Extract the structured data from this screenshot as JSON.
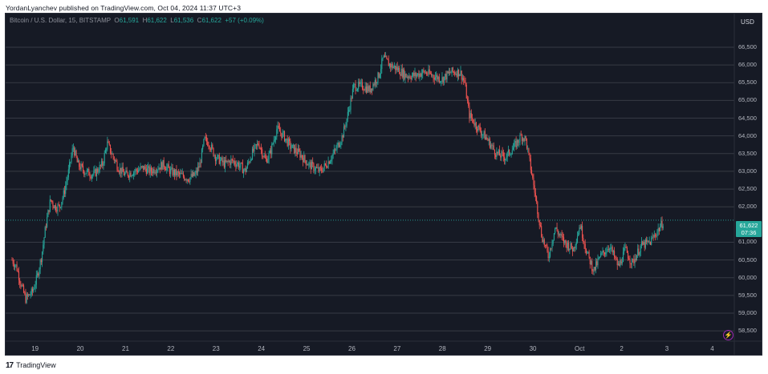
{
  "header": {
    "published_text": "YordanLyanchev published on TradingView.com, Oct 04, 2024 11:37 UTC+3"
  },
  "legend": {
    "symbol": "Bitcoin / U.S. Dollar, 15, BITSTAMP",
    "o_label": "O",
    "o_value": "61,591",
    "h_label": "H",
    "h_value": "61,622",
    "l_label": "L",
    "l_value": "61,536",
    "c_label": "C",
    "c_value": "61,622",
    "change": "+57 (+0.09%)"
  },
  "axis": {
    "currency": "USD",
    "price_labels": [
      "66,500",
      "66,000",
      "65,500",
      "65,000",
      "64,500",
      "64,000",
      "63,500",
      "63,000",
      "62,500",
      "62,000",
      "61,000",
      "60,500",
      "60,000",
      "59,500",
      "59,000",
      "58,500"
    ],
    "time_labels": [
      "19",
      "20",
      "21",
      "22",
      "23",
      "24",
      "25",
      "26",
      "27",
      "28",
      "29",
      "30",
      "Oct",
      "2",
      "3",
      "4"
    ]
  },
  "last_price": {
    "price": "61,622",
    "countdown": "07:36"
  },
  "footer": {
    "brand": "TradingView",
    "logo_text": "17"
  },
  "colors": {
    "up": "#26a69a",
    "down": "#ef5350",
    "background": "#161a25",
    "grid": "#363a45"
  },
  "icons": {
    "bolt": "lightning-icon"
  },
  "chart_data": {
    "type": "candlestick",
    "title": "Bitcoin / U.S. Dollar, 15, BITSTAMP",
    "xlabel": "",
    "ylabel": "USD",
    "ylim": [
      58500,
      66900
    ],
    "grid": true,
    "x": [
      "19",
      "20",
      "21",
      "22",
      "23",
      "24",
      "25",
      "26",
      "27",
      "28",
      "29",
      "30",
      "Oct",
      "2",
      "3",
      "4"
    ],
    "path": [
      [
        0,
        60500
      ],
      [
        0.1,
        60300
      ],
      [
        0.2,
        59800
      ],
      [
        0.3,
        59400
      ],
      [
        0.45,
        59600
      ],
      [
        0.55,
        60000
      ],
      [
        0.65,
        60600
      ],
      [
        0.75,
        61500
      ],
      [
        0.85,
        62200
      ],
      [
        0.95,
        62000
      ],
      [
        1.05,
        62000
      ],
      [
        1.15,
        62400
      ],
      [
        1.25,
        63000
      ],
      [
        1.35,
        63700
      ],
      [
        1.45,
        63200
      ],
      [
        1.6,
        63000
      ],
      [
        1.8,
        62900
      ],
      [
        2.0,
        63200
      ],
      [
        2.1,
        63800
      ],
      [
        2.2,
        63500
      ],
      [
        2.35,
        63100
      ],
      [
        2.5,
        62900
      ],
      [
        2.7,
        63000
      ],
      [
        2.9,
        63100
      ],
      [
        3.05,
        63000
      ],
      [
        3.2,
        63100
      ],
      [
        3.35,
        63200
      ],
      [
        3.5,
        63000
      ],
      [
        3.7,
        62900
      ],
      [
        3.9,
        62800
      ],
      [
        4.05,
        62900
      ],
      [
        4.15,
        63200
      ],
      [
        4.25,
        63900
      ],
      [
        4.35,
        63800
      ],
      [
        4.5,
        63400
      ],
      [
        4.7,
        63200
      ],
      [
        4.85,
        63300
      ],
      [
        5.0,
        63200
      ],
      [
        5.15,
        63000
      ],
      [
        5.3,
        63500
      ],
      [
        5.45,
        63800
      ],
      [
        5.6,
        63300
      ],
      [
        5.7,
        63500
      ],
      [
        5.85,
        64200
      ],
      [
        6.0,
        64000
      ],
      [
        6.15,
        63700
      ],
      [
        6.35,
        63500
      ],
      [
        6.55,
        63200
      ],
      [
        6.8,
        63000
      ],
      [
        6.95,
        63200
      ],
      [
        7.15,
        63600
      ],
      [
        7.3,
        64000
      ],
      [
        7.4,
        64500
      ],
      [
        7.55,
        65400
      ],
      [
        7.75,
        65400
      ],
      [
        7.9,
        65300
      ],
      [
        8.1,
        65700
      ],
      [
        8.2,
        66200
      ],
      [
        8.35,
        66000
      ],
      [
        8.5,
        65900
      ],
      [
        8.7,
        65700
      ],
      [
        8.9,
        65700
      ],
      [
        9.1,
        65800
      ],
      [
        9.3,
        65700
      ],
      [
        9.5,
        65600
      ],
      [
        9.7,
        65800
      ],
      [
        9.9,
        65800
      ],
      [
        10.0,
        65500
      ],
      [
        10.1,
        64600
      ],
      [
        10.25,
        64300
      ],
      [
        10.5,
        63900
      ],
      [
        10.7,
        63500
      ],
      [
        10.9,
        63400
      ],
      [
        11.1,
        63700
      ],
      [
        11.25,
        64000
      ],
      [
        11.35,
        63900
      ],
      [
        11.5,
        62800
      ],
      [
        11.6,
        62000
      ],
      [
        11.7,
        61200
      ],
      [
        11.85,
        60600
      ],
      [
        12.0,
        61400
      ],
      [
        12.2,
        61000
      ],
      [
        12.4,
        60800
      ],
      [
        12.55,
        61500
      ],
      [
        12.7,
        60700
      ],
      [
        12.85,
        60200
      ],
      [
        13.0,
        60600
      ],
      [
        13.2,
        60900
      ],
      [
        13.4,
        60300
      ],
      [
        13.55,
        60800
      ],
      [
        13.7,
        60400
      ],
      [
        13.9,
        60900
      ],
      [
        14.1,
        61000
      ],
      [
        14.25,
        61300
      ],
      [
        14.4,
        61600
      ]
    ],
    "close_last": 61622,
    "candles_per_day": 96,
    "interval": "15m"
  }
}
